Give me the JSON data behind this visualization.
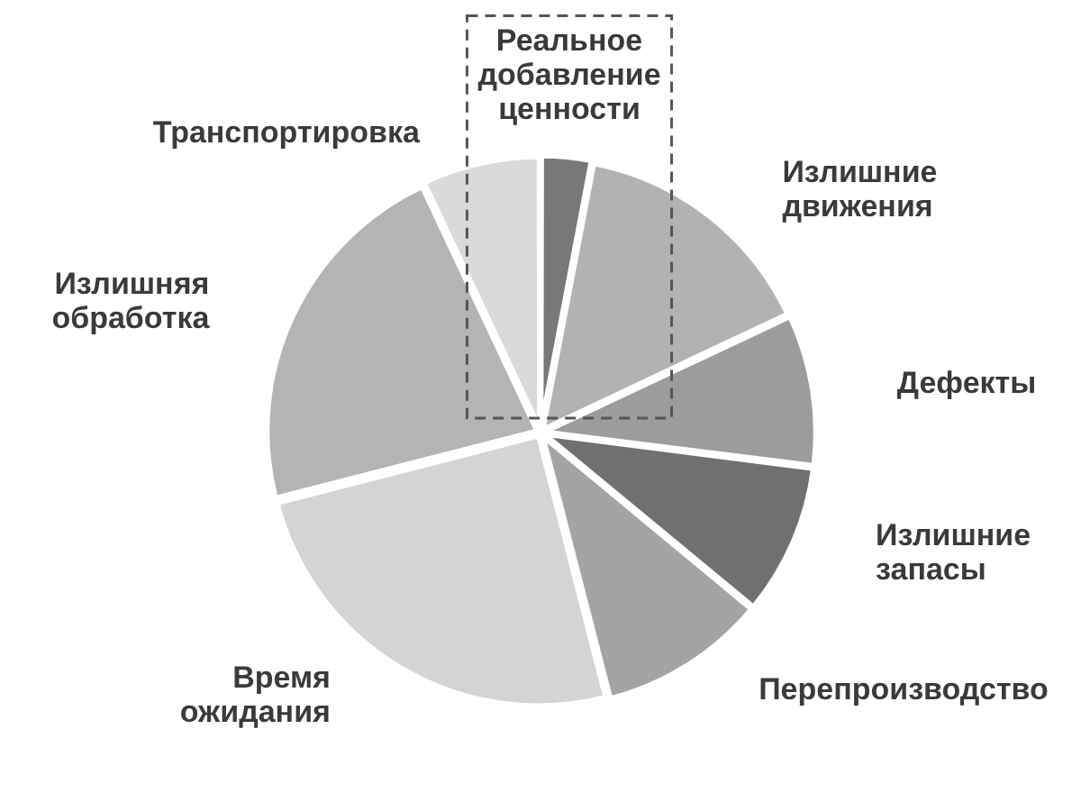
{
  "chart_data": {
    "type": "pie",
    "categories": [
      "Реальное добавление ценности",
      "Излишние движения",
      "Дефекты",
      "Излишние запасы",
      "Перепроизводство",
      "Время ожидания",
      "Излишняя обработка",
      "Транспортировка"
    ],
    "values": [
      3,
      15,
      9,
      9,
      10,
      25,
      22,
      7
    ],
    "colors": [
      "#787878",
      "#b2b2b2",
      "#9c9c9c",
      "#707070",
      "#a4a4a4",
      "#d4d4d4",
      "#b4b4b4",
      "#dadada"
    ]
  }
}
